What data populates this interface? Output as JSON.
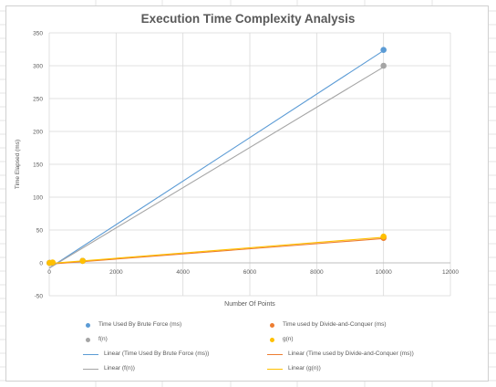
{
  "chart_data": {
    "type": "scatter",
    "title": "Execution Time Complexity Analysis",
    "xlabel": "Number Of Points",
    "ylabel": "Time Elapsed (ms)",
    "xlim": [
      0,
      12000
    ],
    "ylim": [
      -50,
      350
    ],
    "xticks": [
      0,
      2000,
      4000,
      6000,
      8000,
      10000,
      12000
    ],
    "yticks": [
      -50,
      0,
      50,
      100,
      150,
      200,
      250,
      300,
      350
    ],
    "grid": true,
    "legend_position": "bottom",
    "series": [
      {
        "name": "Time Used By Brute Force (ms)",
        "color": "#5b9bd5",
        "points": [
          [
            10,
            0
          ],
          [
            100,
            0
          ],
          [
            1000,
            3
          ],
          [
            10000,
            324
          ]
        ]
      },
      {
        "name": "Time used by Divide-and-Conquer (ms)",
        "color": "#ed7d31",
        "points": [
          [
            10,
            0
          ],
          [
            100,
            0
          ],
          [
            1000,
            3
          ],
          [
            10000,
            38
          ]
        ]
      },
      {
        "name": "f(n)",
        "color": "#a5a5a5",
        "points": [
          [
            10,
            0
          ],
          [
            100,
            0.2
          ],
          [
            1000,
            3
          ],
          [
            10000,
            300
          ]
        ]
      },
      {
        "name": "g(n)",
        "color": "#ffc000",
        "points": [
          [
            10,
            0
          ],
          [
            100,
            0.7
          ],
          [
            1000,
            3
          ],
          [
            10000,
            40
          ]
        ]
      }
    ],
    "trendlines": [
      {
        "name": "Linear (Time Used By Brute Force (ms))",
        "color": "#5b9bd5",
        "from": [
          0,
          -8
        ],
        "to": [
          10000,
          323
        ]
      },
      {
        "name": "Linear (Time used by Divide-and-Conquer (ms))",
        "color": "#ed7d31",
        "from": [
          0,
          -2
        ],
        "to": [
          10000,
          37
        ]
      },
      {
        "name": "Linear (f(n))",
        "color": "#a5a5a5",
        "from": [
          0,
          -8
        ],
        "to": [
          10000,
          298
        ]
      },
      {
        "name": "Linear (g(n))",
        "color": "#ffc000",
        "from": [
          0,
          -1
        ],
        "to": [
          10000,
          39
        ]
      }
    ]
  },
  "legend": {
    "items": [
      {
        "label": "Time Used By Brute Force (ms)",
        "kind": "dot",
        "color": "#5b9bd5"
      },
      {
        "label": "Time used by Divide-and-Conquer (ms)",
        "kind": "dot",
        "color": "#ed7d31"
      },
      {
        "label": "f(n)",
        "kind": "dot",
        "color": "#a5a5a5"
      },
      {
        "label": "g(n)",
        "kind": "dot",
        "color": "#ffc000"
      },
      {
        "label": "Linear (Time Used By Brute Force (ms))",
        "kind": "line",
        "color": "#5b9bd5"
      },
      {
        "label": "Linear (Time used by Divide-and-Conquer (ms))",
        "kind": "line",
        "color": "#ed7d31"
      },
      {
        "label": "Linear (f(n))",
        "kind": "line",
        "color": "#a5a5a5"
      },
      {
        "label": "Linear (g(n))",
        "kind": "line",
        "color": "#ffc000"
      }
    ]
  }
}
